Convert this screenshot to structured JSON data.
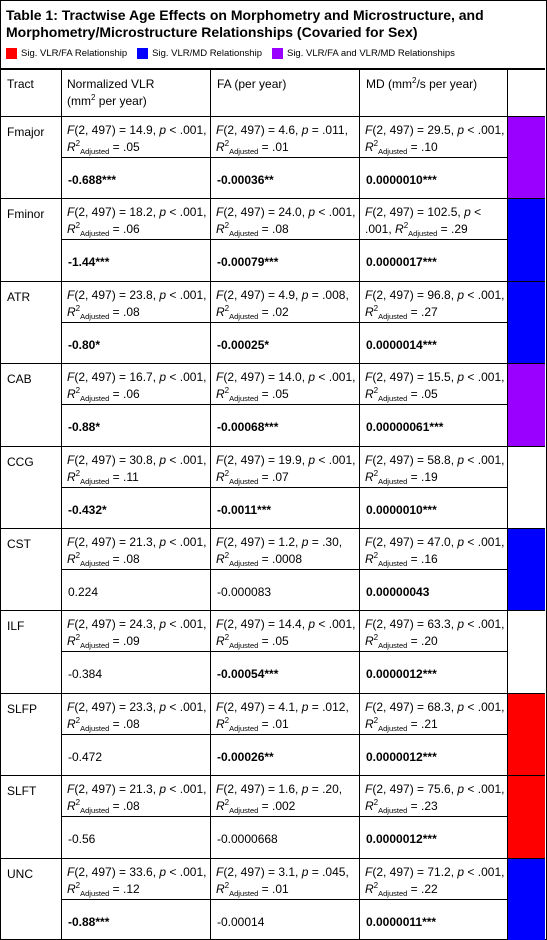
{
  "title": "Table 1: Tractwise Age Effects on Morphometry and Microstructure, and Morphometry/Microstructure Relationships (Covaried for Sex)",
  "legend": [
    {
      "label": "Sig. VLR/FA Relationship",
      "color": "#ff0000"
    },
    {
      "label": "Sig. VLR/MD Relationship",
      "color": "#0000ff"
    },
    {
      "label": "Sig. VLR/FA and VLR/MD Relationships",
      "color": "#9900ff"
    }
  ],
  "colors": {
    "red": "#ff0000",
    "blue": "#0000ff",
    "purple": "#9900ff",
    "none": "#ffffff"
  },
  "headers": {
    "tract": "Tract",
    "vlr": "Normalized VLR",
    "vlr_unit": "(mm",
    "vlr_unit_sup": "2",
    "vlr_unit_tail": " per year)",
    "fa": "FA (per year)",
    "md": "MD (mm",
    "md_sup": "2",
    "md_tail": "/s per year)"
  },
  "stat_parts": {
    "F": "F",
    "p": "p",
    "R": "R",
    "R_sup": "2",
    "R_sub": "Adjusted"
  },
  "rows": [
    {
      "tract": "Fmajor",
      "color": "purple",
      "vlr": {
        "f": "(2, 497) = 14.9, ",
        "p": " < .001, ",
        "r": " = .05",
        "val": "-0.688***",
        "bold": true
      },
      "fa": {
        "f": "(2, 497) = 4.6, ",
        "p": " = .011, ",
        "r": " = .01",
        "val": "-0.00036**",
        "bold": true
      },
      "md": {
        "f": "(2, 497) = 29.5, ",
        "p": " < .001, ",
        "r": " = .10",
        "val": "0.0000010***",
        "bold": true
      }
    },
    {
      "tract": "Fminor",
      "color": "blue",
      "vlr": {
        "f": "(2, 497) = 18.2, ",
        "p": " < .001, ",
        "r": " = .06",
        "val": "-1.44***",
        "bold": true
      },
      "fa": {
        "f": "(2, 497) = 24.0, ",
        "p": " < .001, ",
        "r": " = .08",
        "val": "-0.00079***",
        "bold": true
      },
      "md": {
        "f": "(2, 497) = 102.5, ",
        "p": " < .001, ",
        "r": " = .29",
        "val": "0.0000017***",
        "bold": true
      }
    },
    {
      "tract": "ATR",
      "color": "blue",
      "vlr": {
        "f": "(2, 497) = 23.8, ",
        "p": " < .001, ",
        "r": " = .08",
        "val": "-0.80*",
        "bold": true
      },
      "fa": {
        "f": "(2, 497) = 4.9, ",
        "p": " = .008, ",
        "r": " = .02",
        "val": "-0.00025*",
        "bold": true
      },
      "md": {
        "f": "(2, 497) = 96.8, ",
        "p": " < .001, ",
        "r": " = .27",
        "val": "0.0000014***",
        "bold": true
      }
    },
    {
      "tract": "CAB",
      "color": "purple",
      "vlr": {
        "f": "(2, 497) = 16.7, ",
        "p": " < .001, ",
        "r": " = .06",
        "val": "-0.88*",
        "bold": true
      },
      "fa": {
        "f": "(2, 497) = 14.0, ",
        "p": " < .001, ",
        "r": " = .05",
        "val": "-0.00068***",
        "bold": true
      },
      "md": {
        "f": "(2, 497) = 15.5, ",
        "p": " < .001, ",
        "r": " = .05",
        "val": "0.00000061***",
        "bold": true
      }
    },
    {
      "tract": "CCG",
      "color": "none",
      "vlr": {
        "f": "(2, 497) = 30.8, ",
        "p": " < .001, ",
        "r": " = .11",
        "val": "-0.432*",
        "bold": true
      },
      "fa": {
        "f": "(2, 497) = 19.9, ",
        "p": " < .001, ",
        "r": " = .07",
        "val": "-0.0011***",
        "bold": true
      },
      "md": {
        "f": "(2, 497) = 58.8, ",
        "p": " < .001, ",
        "r": " = .19",
        "val": "0.0000010***",
        "bold": true
      }
    },
    {
      "tract": "CST",
      "color": "blue",
      "vlr": {
        "f": "(2, 497) = 21.3, ",
        "p": " < .001, ",
        "r": " = .08",
        "val": "0.224",
        "bold": false
      },
      "fa": {
        "f": "(2, 497) = 1.2, ",
        "p": " = .30, ",
        "r": " = .0008",
        "val": "-0.000083",
        "bold": false
      },
      "md": {
        "f": "(2, 497) = 47.0, ",
        "p": " < .001, ",
        "r": " = .16",
        "val": "0.00000043",
        "bold": true
      }
    },
    {
      "tract": "ILF",
      "color": "none",
      "vlr": {
        "f": "(2, 497) = 24.3, ",
        "p": " < .001, ",
        "r": " = .09",
        "val": "-0.384",
        "bold": false
      },
      "fa": {
        "f": "(2, 497) = 14.4, ",
        "p": " < .001, ",
        "r": " = .05",
        "val": "-0.00054***",
        "bold": true
      },
      "md": {
        "f": "(2, 497) = 63.3, ",
        "p": " < .001, ",
        "r": " = .20",
        "val": "0.0000012***",
        "bold": true
      }
    },
    {
      "tract": "SLFP",
      "color": "red",
      "vlr": {
        "f": "(2, 497) = 23.3, ",
        "p": " < .001, ",
        "r": " = .08",
        "val": "-0.472",
        "bold": false
      },
      "fa": {
        "f": "(2, 497) = 4.1, ",
        "p": " = .012, ",
        "r": " = .01",
        "val": "-0.00026**",
        "bold": true
      },
      "md": {
        "f": "(2, 497) = 68.3, ",
        "p": " < .001, ",
        "r": " = .21",
        "val": "0.0000012***",
        "bold": true
      }
    },
    {
      "tract": "SLFT",
      "color": "red",
      "vlr": {
        "f": "(2, 497) = 21.3, ",
        "p": " < .001, ",
        "r": " = .08",
        "val": "-0.56",
        "bold": false
      },
      "fa": {
        "f": "(2, 497) = 1.6, ",
        "p": " = .20, ",
        "r": " = .002",
        "val": "-0.0000668",
        "bold": false
      },
      "md": {
        "f": "(2, 497) = 75.6, ",
        "p": " < .001, ",
        "r": " = .23",
        "val": "0.0000012***",
        "bold": true
      }
    },
    {
      "tract": "UNC",
      "color": "blue",
      "vlr": {
        "f": "(2, 497) = 33.6, ",
        "p": " < .001, ",
        "r": " = .12",
        "val": "-0.88***",
        "bold": true
      },
      "fa": {
        "f": "(2, 497) = 3.1, ",
        "p": " = .045, ",
        "r": " = .01",
        "val": "-0.00014",
        "bold": false
      },
      "md": {
        "f": "(2, 497) = 71.2, ",
        "p": " < .001, ",
        "r": " = .22",
        "val": "0.0000011***",
        "bold": true
      }
    }
  ]
}
